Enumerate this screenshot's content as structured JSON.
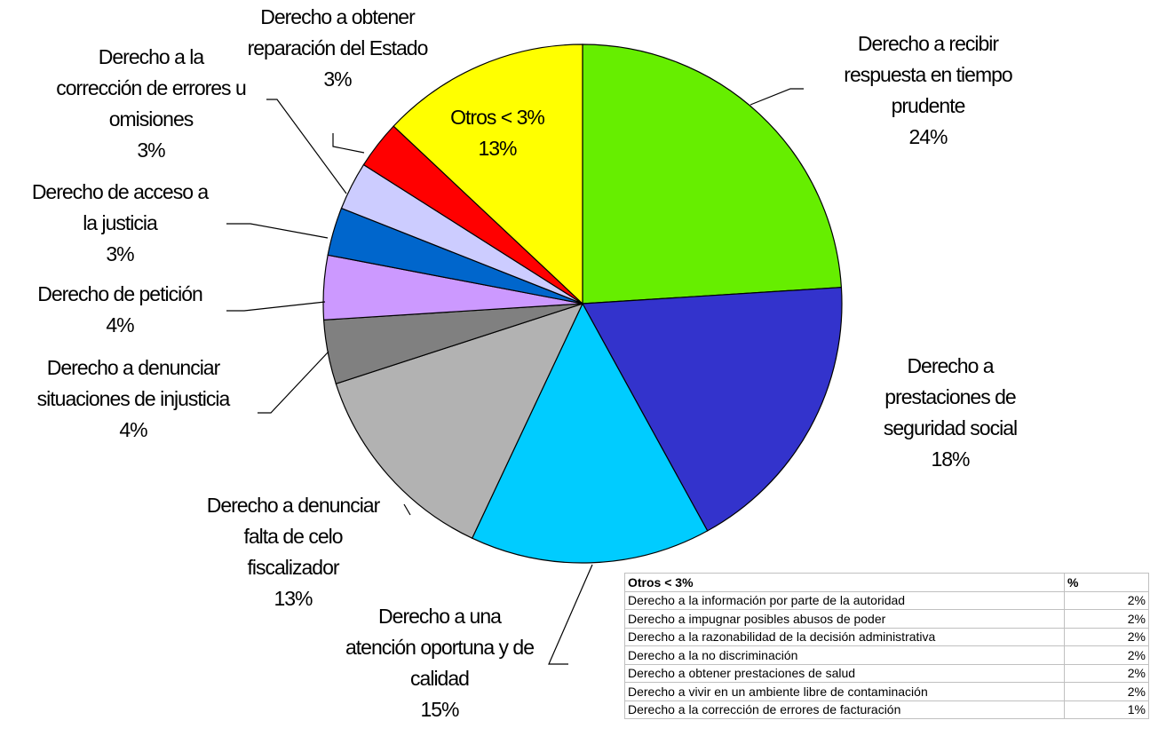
{
  "chart_data": {
    "type": "pie",
    "categories": [
      "Derecho a recibir respuesta en tiempo prudente",
      "Derecho a prestaciones de seguridad social",
      "Derecho a una atención oportuna y de calidad",
      "Derecho a denunciar falta de celo fiscalizador",
      "Derecho a denunciar situaciones de injusticia",
      "Derecho de petición",
      "Derecho de acceso a la justicia",
      "Derecho a la corrección de errores u omisiones",
      "Derecho a obtener reparación del Estado",
      "Otros < 3%"
    ],
    "values": [
      24,
      18,
      15,
      13,
      4,
      4,
      3,
      3,
      3,
      13
    ],
    "value_labels": [
      "24%",
      "18%",
      "15%",
      "13%",
      "4%",
      "4%",
      "3%",
      "3%",
      "3%",
      "13%"
    ],
    "colors": [
      "#66ee00",
      "#3333cc",
      "#00ccff",
      "#b2b2b2",
      "#808080",
      "#cc99ff",
      "#0066cc",
      "#ccccff",
      "#ff0000",
      "#ffff00"
    ]
  },
  "table": {
    "header": [
      "Otros < 3%",
      "%"
    ],
    "rows": [
      [
        "Derecho a la información por parte de la autoridad",
        "2%"
      ],
      [
        "Derecho a impugnar posibles abusos de poder",
        "2%"
      ],
      [
        "Derecho a la razonabilidad de la decisión administrativa",
        "2%"
      ],
      [
        "Derecho a la no discriminación",
        "2%"
      ],
      [
        "Derecho a obtener prestaciones de salud",
        "2%"
      ],
      [
        "Derecho a vivir en un ambiente libre de contaminación",
        "2%"
      ],
      [
        "Derecho a la corrección de errores de facturación",
        "1%"
      ]
    ]
  }
}
